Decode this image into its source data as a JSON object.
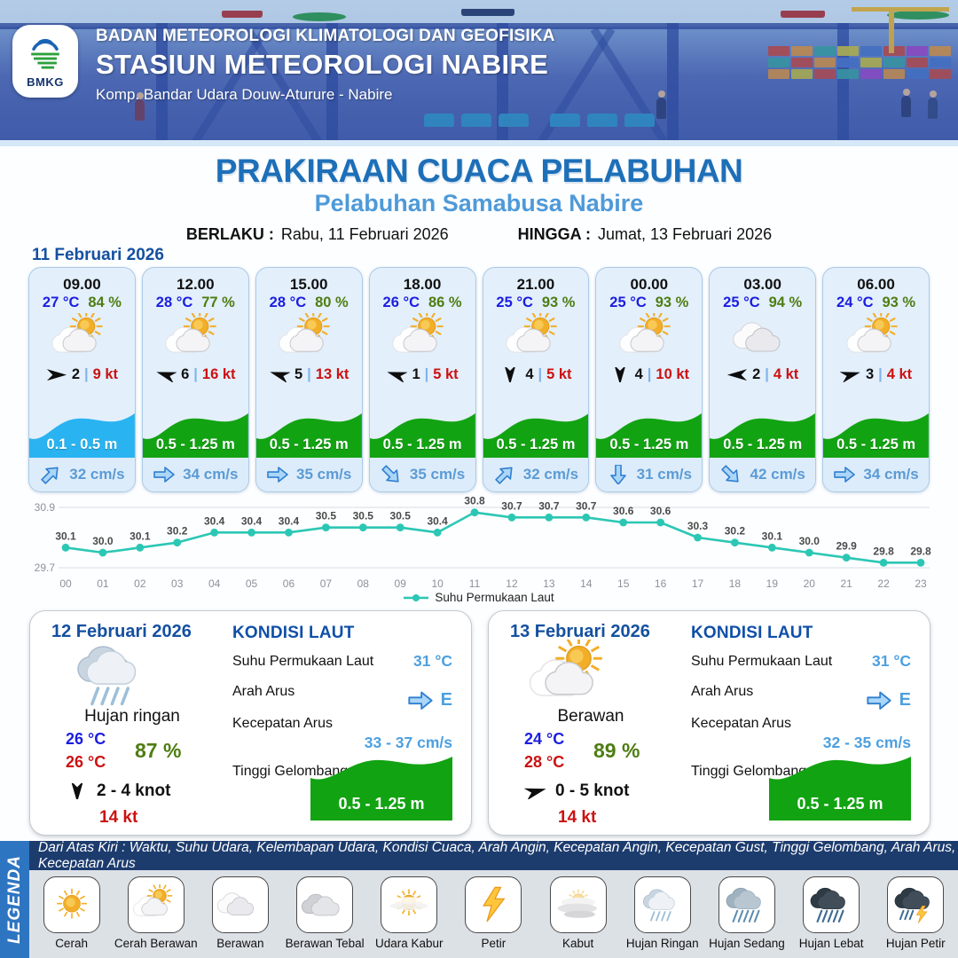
{
  "header": {
    "agency": "BADAN METEOROLOGI KLIMATOLOGI DAN GEOFISIKA",
    "station": "STASIUN METEOROLOGI NABIRE",
    "address": "Komp. Bandar Udara Douw-Aturure - Nabire",
    "logo_text": "BMKG"
  },
  "title": {
    "main": "PRAKIRAAN CUACA PELABUHAN",
    "subtitle": "Pelabuhan Samabusa Nabire",
    "berlaku_label": "BERLAKU :",
    "berlaku_value": "Rabu, 11 Februari 2026",
    "hingga_label": "HINGGA :",
    "hingga_value": "Jumat, 13 Februari 2026"
  },
  "ui": {
    "divider": "|"
  },
  "forecast_day": {
    "date": "11 Februari 2026",
    "cards": [
      {
        "time": "09.00",
        "temp": "27 °C",
        "humidity": "84 %",
        "icon": "cerah-berawan",
        "wind_deg": 0,
        "wind_speed": "2",
        "gust": "9 kt",
        "wave": "0.1 - 0.5 m",
        "wave_color": "#29b3f0",
        "current_deg": -45,
        "current": "32 cm/s"
      },
      {
        "time": "12.00",
        "temp": "28 °C",
        "humidity": "77 %",
        "icon": "cerah-berawan",
        "wind_deg": 197,
        "wind_speed": "6",
        "gust": "16 kt",
        "wave": "0.5 - 1.25 m",
        "wave_color": "#12a312",
        "current_deg": 0,
        "current": "34 cm/s"
      },
      {
        "time": "15.00",
        "temp": "28 °C",
        "humidity": "80 %",
        "icon": "cerah-berawan",
        "wind_deg": 197,
        "wind_speed": "5",
        "gust": "13 kt",
        "wave": "0.5 - 1.25 m",
        "wave_color": "#12a312",
        "current_deg": 0,
        "current": "35 cm/s"
      },
      {
        "time": "18.00",
        "temp": "26 °C",
        "humidity": "86 %",
        "icon": "cerah-berawan",
        "wind_deg": 197,
        "wind_speed": "1",
        "gust": "5 kt",
        "wave": "0.5 - 1.25 m",
        "wave_color": "#12a312",
        "current_deg": 45,
        "current": "35 cm/s"
      },
      {
        "time": "21.00",
        "temp": "25 °C",
        "humidity": "93 %",
        "icon": "cerah-berawan",
        "wind_deg": 90,
        "wind_speed": "4",
        "gust": "5 kt",
        "wave": "0.5 - 1.25 m",
        "wave_color": "#12a312",
        "current_deg": -45,
        "current": "32 cm/s"
      },
      {
        "time": "00.00",
        "temp": "25 °C",
        "humidity": "93 %",
        "icon": "cerah-berawan",
        "wind_deg": 90,
        "wind_speed": "4",
        "gust": "10 kt",
        "wave": "0.5 - 1.25 m",
        "wave_color": "#12a312",
        "current_deg": 90,
        "current": "31 cm/s"
      },
      {
        "time": "03.00",
        "temp": "25 °C",
        "humidity": "94 %",
        "icon": "berawan",
        "wind_deg": 180,
        "wind_speed": "2",
        "gust": "4 kt",
        "wave": "0.5 - 1.25 m",
        "wave_color": "#12a312",
        "current_deg": 45,
        "current": "42 cm/s"
      },
      {
        "time": "06.00",
        "temp": "24 °C",
        "humidity": "93 %",
        "icon": "cerah-berawan",
        "wind_deg": -15,
        "wind_speed": "3",
        "gust": "4 kt",
        "wave": "0.5 - 1.25 m",
        "wave_color": "#12a312",
        "current_deg": 0,
        "current": "34 cm/s"
      }
    ]
  },
  "chart_data": {
    "type": "line",
    "series_name": "Suhu Permukaan Laut",
    "x": [
      "00",
      "01",
      "02",
      "03",
      "04",
      "05",
      "06",
      "07",
      "08",
      "09",
      "10",
      "11",
      "12",
      "13",
      "14",
      "15",
      "16",
      "17",
      "18",
      "19",
      "20",
      "21",
      "22",
      "23"
    ],
    "values": [
      30.1,
      30.0,
      30.1,
      30.2,
      30.4,
      30.4,
      30.4,
      30.5,
      30.5,
      30.5,
      30.4,
      30.8,
      30.7,
      30.7,
      30.7,
      30.6,
      30.6,
      30.3,
      30.2,
      30.1,
      30.0,
      29.9,
      29.8,
      29.8
    ],
    "ylim": [
      29.7,
      30.9
    ],
    "yticks": [
      "30.9",
      "29.7"
    ],
    "line_color": "#2bc7b4",
    "grid": true,
    "legend_position": "bottom"
  },
  "day_cards": [
    {
      "date": "12 Februari 2026",
      "icon": "hujan-ringan",
      "condition": "Hujan ringan",
      "temp_min": "26 °C",
      "temp_max": "26 °C",
      "humidity": "87 %",
      "wind_deg": 90,
      "wind": "2 - 4 knot",
      "gust": "14 kt",
      "sea": {
        "title": "KONDISI LAUT",
        "sst_label": "Suhu Permukaan Laut",
        "sst": "31 °C",
        "current_dir_label": "Arah Arus",
        "current_dir": "E",
        "current_dir_deg": 0,
        "current_speed_label": "Kecepatan Arus",
        "current_speed": "33 - 37 cm/s",
        "wave_label": "Tinggi Gelombang",
        "wave": "0.5 - 1.25 m"
      }
    },
    {
      "date": "13 Februari 2026",
      "icon": "cerah-berawan",
      "condition": "Berawan",
      "temp_min": "24 °C",
      "temp_max": "28 °C",
      "humidity": "89 %",
      "wind_deg": -15,
      "wind": "0 - 5 knot",
      "gust": "14 kt",
      "sea": {
        "title": "KONDISI LAUT",
        "sst_label": "Suhu Permukaan Laut",
        "sst": "31 °C",
        "current_dir_label": "Arah Arus",
        "current_dir": "E",
        "current_dir_deg": 0,
        "current_speed_label": "Kecepatan Arus",
        "current_speed": "32 - 35 cm/s",
        "wave_label": "Tinggi Gelombang",
        "wave": "0.5 - 1.25 m"
      }
    }
  ],
  "legend": {
    "band": "LEGENDA",
    "note": "Dari Atas Kiri : Waktu, Suhu Udara, Kelembapan Udara, Kondisi Cuaca, Arah Angin, Kecepatan Angin, Kecepatan Gust, Tinggi Gelombang, Arah Arus, Kecepatan Arus",
    "items": [
      {
        "label": "Cerah",
        "icon": "cerah"
      },
      {
        "label": "Cerah Berawan",
        "icon": "cerah-berawan"
      },
      {
        "label": "Berawan",
        "icon": "berawan"
      },
      {
        "label": "Berawan Tebal",
        "icon": "berawan-tebal"
      },
      {
        "label": "Udara Kabur",
        "icon": "udara-kabur"
      },
      {
        "label": "Petir",
        "icon": "petir"
      },
      {
        "label": "Kabut",
        "icon": "kabut"
      },
      {
        "label": "Hujan Ringan",
        "icon": "hujan-ringan"
      },
      {
        "label": "Hujan Sedang",
        "icon": "hujan-sedang"
      },
      {
        "label": "Hujan Lebat",
        "icon": "hujan-lebat"
      },
      {
        "label": "Hujan Petir",
        "icon": "hujan-petir"
      }
    ]
  }
}
